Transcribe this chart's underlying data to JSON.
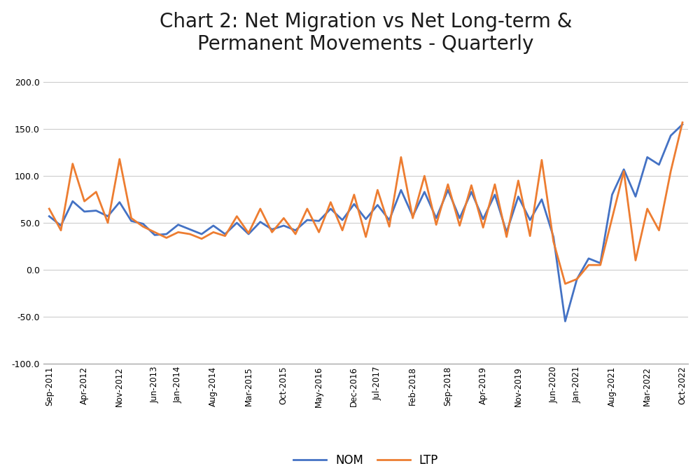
{
  "title": "Chart 2: Net Migration vs Net Long-term &\nPermanent Movements - Quarterly",
  "title_fontsize": 20,
  "ylim": [
    -100.0,
    220.0
  ],
  "yticks": [
    -100.0,
    -50.0,
    0.0,
    50.0,
    100.0,
    150.0,
    200.0
  ],
  "nom_color": "#4472c4",
  "ltp_color": "#ed7d31",
  "line_width": 2.0,
  "legend_fontsize": 12,
  "tick_labels": [
    "Sep-2011",
    "Apr-2012",
    "Nov-2012",
    "Jun-2013",
    "Jan-2014",
    "Aug-2014",
    "Mar-2015",
    "Oct-2015",
    "May-2016",
    "Dec-2016",
    "Jul-2017",
    "Feb-2018",
    "Sep-2018",
    "Apr-2019",
    "Nov-2019",
    "Jun-2020",
    "Jan-2021",
    "Aug-2021",
    "Mar-2022",
    "Oct-2022"
  ],
  "NOM": [
    57,
    47,
    73,
    62,
    63,
    57,
    72,
    52,
    49,
    37,
    38,
    48,
    43,
    38,
    47,
    38,
    50,
    38,
    51,
    43,
    47,
    42,
    53,
    52,
    65,
    53,
    70,
    54,
    69,
    53,
    85,
    57,
    83,
    55,
    85,
    55,
    83,
    54,
    80,
    40,
    78,
    53,
    75,
    35,
    -55,
    -10,
    12,
    7,
    80,
    107,
    78,
    120,
    112,
    143,
    155
  ],
  "LTP": [
    65,
    42,
    113,
    73,
    83,
    50,
    118,
    55,
    46,
    40,
    34,
    40,
    38,
    33,
    40,
    36,
    57,
    39,
    65,
    40,
    55,
    38,
    65,
    40,
    72,
    42,
    80,
    35,
    85,
    46,
    120,
    55,
    100,
    48,
    91,
    47,
    90,
    45,
    91,
    35,
    95,
    36,
    117,
    30,
    -15,
    -10,
    5,
    5,
    55,
    105,
    10,
    65,
    42,
    105,
    157
  ]
}
